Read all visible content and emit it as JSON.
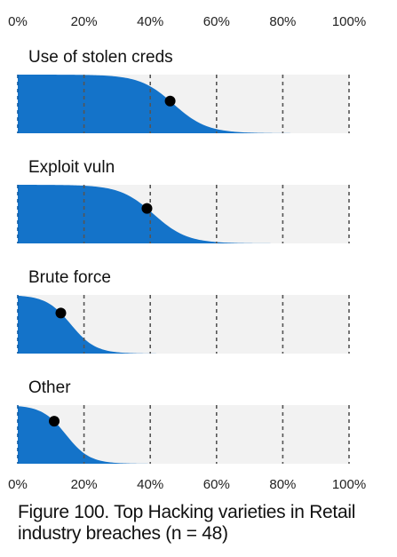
{
  "chart_data": {
    "type": "area",
    "x_ticks": [
      "0%",
      "20%",
      "40%",
      "60%",
      "80%",
      "100%"
    ],
    "xlim": [
      0,
      100
    ],
    "grid": true,
    "colors": {
      "fill": "#1473c9",
      "panel": "#f2f2f2",
      "grid": "#555555",
      "point": "#000000"
    },
    "series": [
      {
        "name": "Use of stolen creds",
        "point_estimate": 46,
        "interval": [
          28,
          66
        ]
      },
      {
        "name": "Exploit vuln",
        "point_estimate": 39,
        "interval": [
          22,
          60
        ]
      },
      {
        "name": "Brute force",
        "point_estimate": 13,
        "interval": [
          2,
          30
        ]
      },
      {
        "name": "Other",
        "point_estimate": 11,
        "interval": [
          1,
          28
        ]
      }
    ]
  },
  "caption": {
    "line1": "Figure 100. Top Hacking varieties in Retail",
    "line2": "industry breaches (n = 48)"
  }
}
